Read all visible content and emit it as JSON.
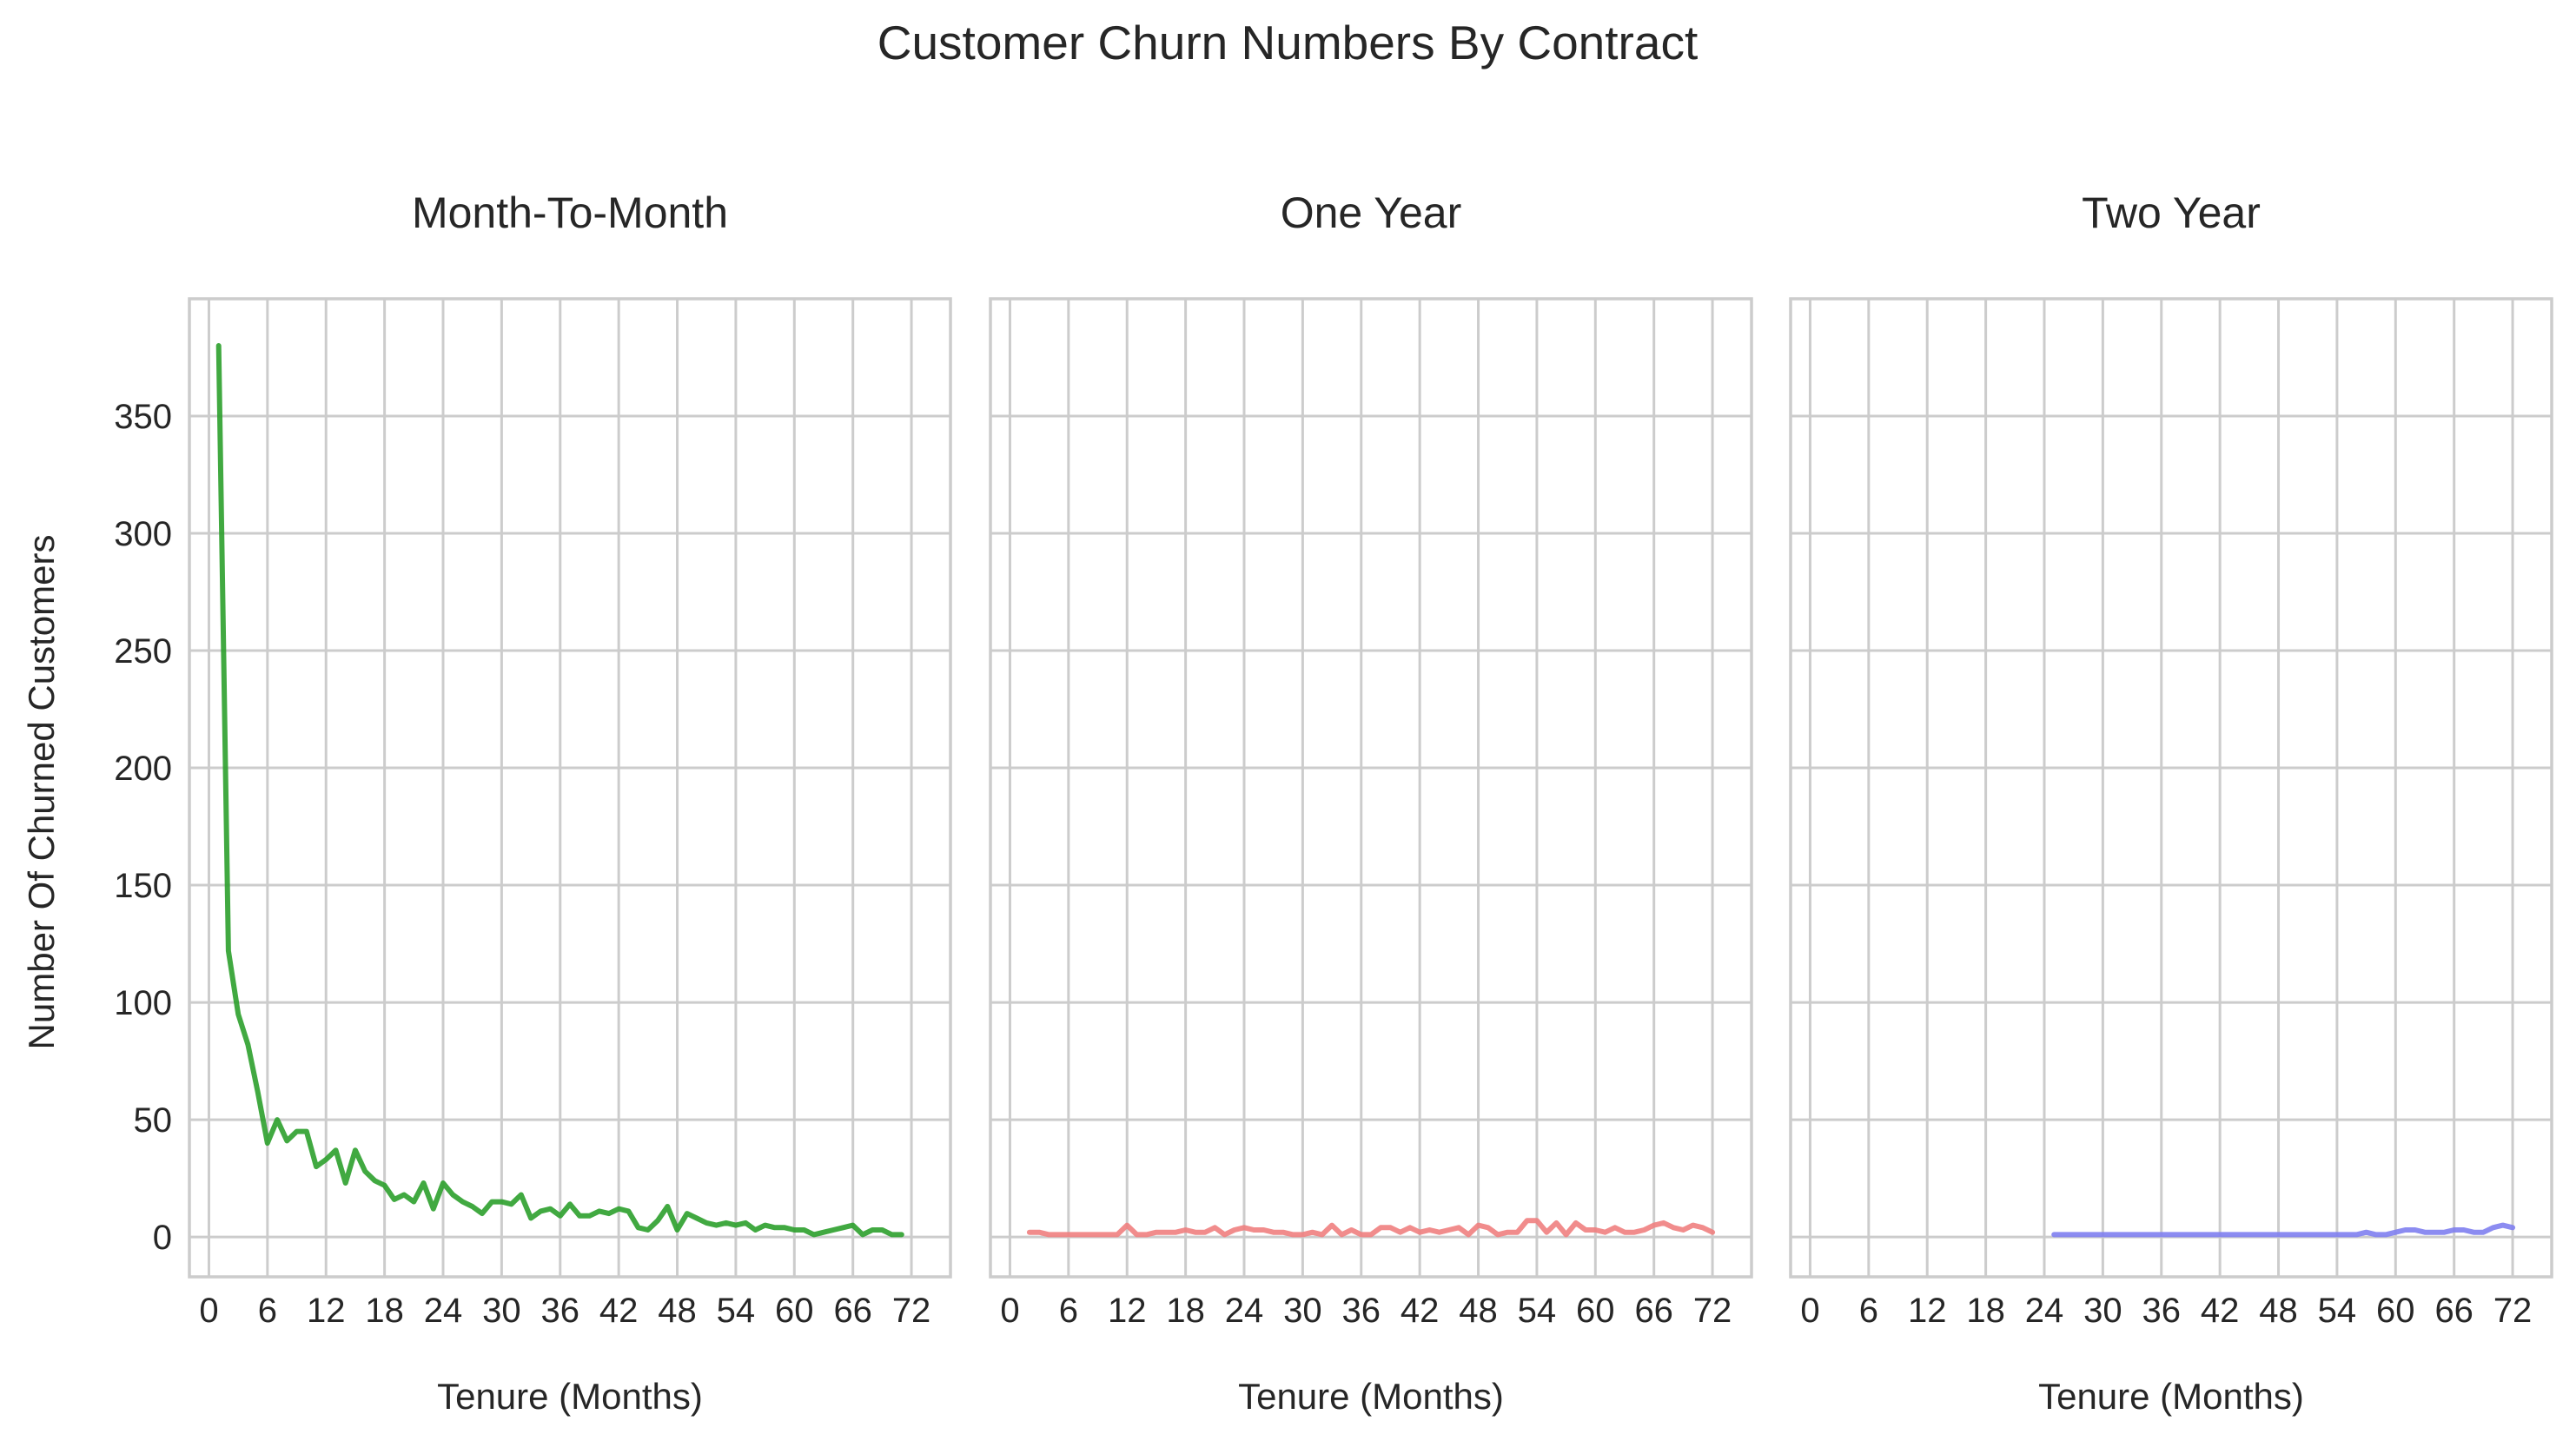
{
  "suptitle": "Customer Churn Numbers By Contract",
  "shared_ylabel": "Number Of Churned Customers",
  "chart_data": [
    {
      "type": "line",
      "title": "Month-To-Month",
      "xlabel": "Tenure (Months)",
      "ylabel": "Number Of Churned Customers",
      "xlim": [
        -2,
        76
      ],
      "ylim": [
        -17,
        400
      ],
      "xticks": [
        0,
        6,
        12,
        18,
        24,
        30,
        36,
        42,
        48,
        54,
        60,
        66,
        72
      ],
      "yticks": [
        0,
        50,
        100,
        150,
        200,
        250,
        300,
        350
      ],
      "grid": true,
      "series": [
        {
          "color": "#2ca02c",
          "x": [
            1,
            2,
            3,
            4,
            5,
            6,
            7,
            8,
            9,
            10,
            11,
            12,
            13,
            14,
            15,
            16,
            17,
            18,
            19,
            20,
            21,
            22,
            23,
            24,
            25,
            26,
            27,
            28,
            29,
            30,
            31,
            32,
            33,
            34,
            35,
            36,
            37,
            38,
            39,
            40,
            41,
            42,
            43,
            44,
            45,
            46,
            47,
            48,
            49,
            50,
            51,
            52,
            53,
            54,
            55,
            56,
            57,
            58,
            59,
            60,
            61,
            62,
            63,
            64,
            65,
            66,
            67,
            68,
            69,
            70,
            71
          ],
          "y": [
            380,
            122,
            95,
            82,
            62,
            40,
            50,
            41,
            45,
            45,
            30,
            33,
            37,
            23,
            37,
            28,
            24,
            22,
            16,
            18,
            15,
            23,
            12,
            23,
            18,
            15,
            13,
            10,
            15,
            15,
            14,
            18,
            8,
            11,
            12,
            9,
            14,
            9,
            9,
            11,
            10,
            12,
            11,
            4,
            3,
            7,
            13,
            3,
            10,
            8,
            6,
            5,
            6,
            5,
            6,
            3,
            5,
            4,
            4,
            3,
            3,
            1,
            2,
            3,
            4,
            5,
            1,
            3,
            3,
            1,
            1
          ]
        }
      ]
    },
    {
      "type": "line",
      "title": "One Year",
      "xlabel": "Tenure (Months)",
      "xlim": [
        -2,
        76
      ],
      "ylim": [
        -17,
        400
      ],
      "xticks": [
        0,
        6,
        12,
        18,
        24,
        30,
        36,
        42,
        48,
        54,
        60,
        66,
        72
      ],
      "yticks": [
        0,
        50,
        100,
        150,
        200,
        250,
        300,
        350
      ],
      "grid": true,
      "series": [
        {
          "color": "#f08080",
          "x": [
            2,
            3,
            4,
            5,
            6,
            7,
            8,
            9,
            10,
            11,
            12,
            13,
            14,
            15,
            16,
            17,
            18,
            19,
            20,
            21,
            22,
            23,
            24,
            25,
            26,
            27,
            28,
            29,
            30,
            31,
            32,
            33,
            34,
            35,
            36,
            37,
            38,
            39,
            40,
            41,
            42,
            43,
            44,
            45,
            46,
            47,
            48,
            49,
            50,
            51,
            52,
            53,
            54,
            55,
            56,
            57,
            58,
            59,
            60,
            61,
            62,
            63,
            64,
            65,
            66,
            67,
            68,
            69,
            70,
            71,
            72
          ],
          "y": [
            2,
            2,
            1,
            1,
            1,
            1,
            1,
            1,
            1,
            1,
            5,
            1,
            1,
            2,
            2,
            2,
            3,
            2,
            2,
            4,
            1,
            3,
            4,
            3,
            3,
            2,
            2,
            1,
            1,
            2,
            1,
            5,
            1,
            3,
            1,
            1,
            4,
            4,
            2,
            4,
            2,
            3,
            2,
            3,
            4,
            1,
            5,
            4,
            1,
            2,
            2,
            7,
            7,
            2,
            6,
            1,
            6,
            3,
            3,
            2,
            4,
            2,
            2,
            3,
            5,
            6,
            4,
            3,
            5,
            4,
            2
          ]
        }
      ]
    },
    {
      "type": "line",
      "title": "Two Year",
      "xlabel": "Tenure (Months)",
      "xlim": [
        -2,
        76
      ],
      "ylim": [
        -17,
        400
      ],
      "xticks": [
        0,
        6,
        12,
        18,
        24,
        30,
        36,
        42,
        48,
        54,
        60,
        66,
        72
      ],
      "yticks": [
        0,
        50,
        100,
        150,
        200,
        250,
        300,
        350
      ],
      "grid": true,
      "series": [
        {
          "color": "#8080f0",
          "x": [
            25,
            26,
            27,
            28,
            29,
            30,
            31,
            32,
            33,
            34,
            35,
            36,
            37,
            38,
            39,
            40,
            41,
            42,
            43,
            44,
            45,
            46,
            47,
            48,
            49,
            50,
            51,
            52,
            53,
            54,
            55,
            56,
            57,
            58,
            59,
            60,
            61,
            62,
            63,
            64,
            65,
            66,
            67,
            68,
            69,
            70,
            71,
            72
          ],
          "y": [
            1,
            1,
            1,
            1,
            1,
            1,
            1,
            1,
            1,
            1,
            1,
            1,
            1,
            1,
            1,
            1,
            1,
            1,
            1,
            1,
            1,
            1,
            1,
            1,
            1,
            1,
            1,
            1,
            1,
            1,
            1,
            1,
            2,
            1,
            1,
            2,
            3,
            3,
            2,
            2,
            2,
            3,
            3,
            2,
            2,
            4,
            5,
            4
          ]
        }
      ]
    }
  ]
}
